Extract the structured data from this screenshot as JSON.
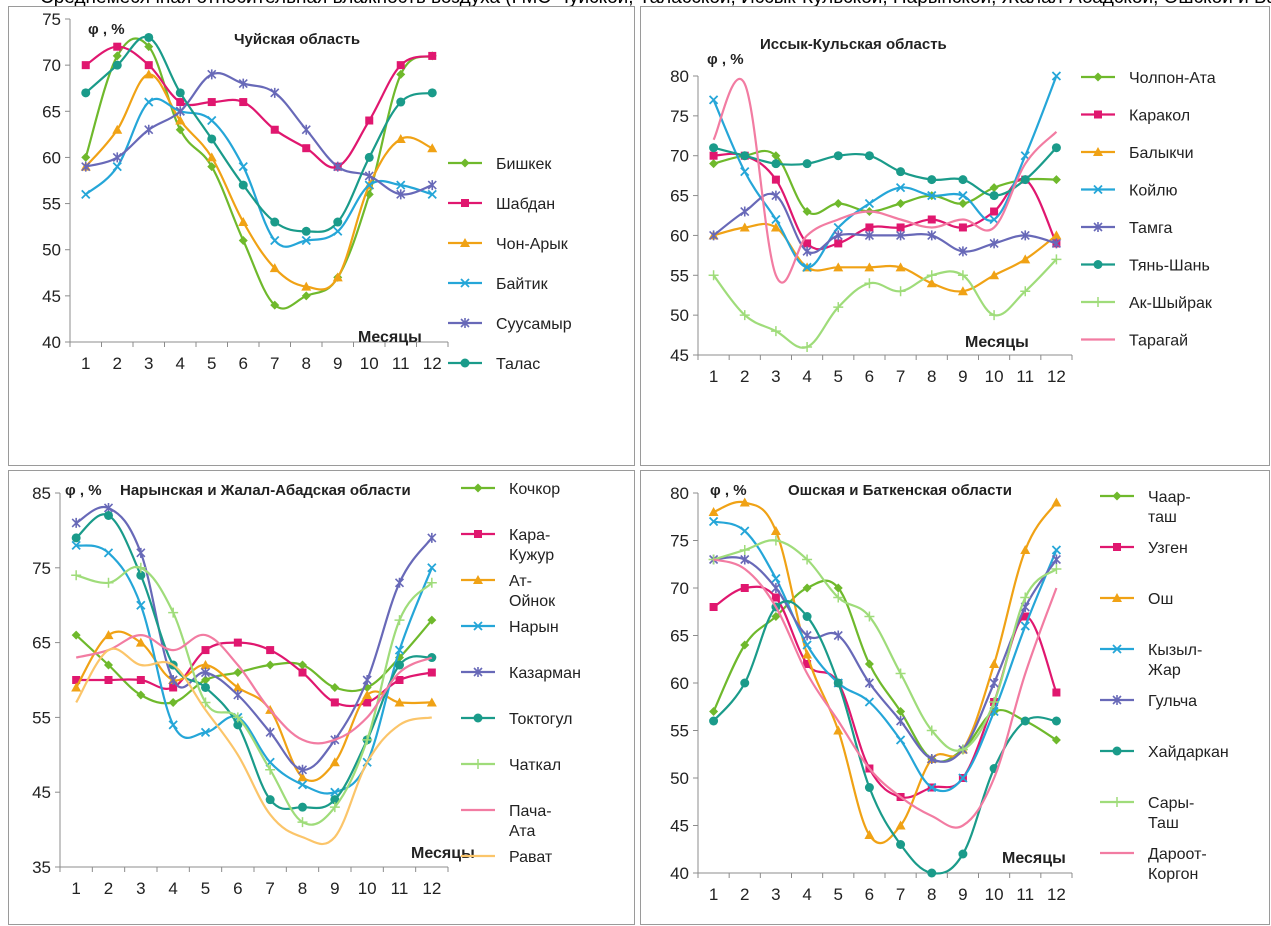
{
  "header_fragment": "Среднемесячная относительная влажность воздуха (ГМС Чуйской, Таласской, Иссык-Кульской, Нарынской, Жалал-Абадской, Ошской и Баткенской областей)",
  "chart_data": [
    {
      "type": "line",
      "title": "Чуйская область",
      "ylabel": "φ , %",
      "xlabel": "Месяцы",
      "categories": [
        "1",
        "2",
        "3",
        "4",
        "5",
        "6",
        "7",
        "8",
        "9",
        "10",
        "11",
        "12"
      ],
      "ylim": [
        40,
        75
      ],
      "yticks": [
        40,
        45,
        50,
        55,
        60,
        65,
        70,
        75
      ],
      "grid": false,
      "legend": "right",
      "series": [
        {
          "name": "Бишкек",
          "color": "#6fb92c",
          "marker": "diamond",
          "values": [
            60,
            71,
            72,
            63,
            59,
            51,
            44,
            45,
            47,
            56,
            69,
            71
          ]
        },
        {
          "name": "Шабдан",
          "color": "#e0176f",
          "marker": "square",
          "values": [
            70,
            72,
            70,
            66,
            66,
            66,
            63,
            61,
            59,
            64,
            70,
            71
          ]
        },
        {
          "name": "Чон-Арык",
          "color": "#f0a215",
          "marker": "triangle",
          "values": [
            59,
            63,
            69,
            64,
            60,
            53,
            48,
            46,
            47,
            57,
            62,
            61
          ]
        },
        {
          "name": "Байтик",
          "color": "#25a6d8",
          "marker": "x",
          "values": [
            56,
            59,
            66,
            65,
            64,
            59,
            51,
            51,
            52,
            57,
            57,
            56
          ]
        },
        {
          "name": "Суусамыр",
          "color": "#6869b8",
          "marker": "star",
          "values": [
            59,
            60,
            63,
            65,
            69,
            68,
            67,
            63,
            59,
            58,
            56,
            57
          ]
        },
        {
          "name": "Талас",
          "color": "#1a9b8a",
          "marker": "circle",
          "values": [
            67,
            70,
            73,
            67,
            62,
            57,
            53,
            52,
            53,
            60,
            66,
            67
          ]
        }
      ]
    },
    {
      "type": "line",
      "title": "Иссык-Кульская область",
      "ylabel": "φ , %",
      "xlabel": "Месяцы",
      "categories": [
        "1",
        "2",
        "3",
        "4",
        "5",
        "6",
        "7",
        "8",
        "9",
        "10",
        "11",
        "12"
      ],
      "ylim": [
        45,
        80
      ],
      "yticks": [
        45,
        50,
        55,
        60,
        65,
        70,
        75,
        80
      ],
      "grid": false,
      "legend": "right",
      "series": [
        {
          "name": "Чолпон-Ата",
          "color": "#6fb92c",
          "marker": "diamond",
          "values": [
            69,
            70,
            70,
            63,
            64,
            63,
            64,
            65,
            64,
            66,
            67,
            67
          ]
        },
        {
          "name": "Каракол",
          "color": "#e0176f",
          "marker": "square",
          "values": [
            70,
            70,
            67,
            59,
            59,
            61,
            61,
            62,
            61,
            63,
            67,
            59
          ]
        },
        {
          "name": "Балыкчи",
          "color": "#f0a215",
          "marker": "triangle",
          "values": [
            60,
            61,
            61,
            56,
            56,
            56,
            56,
            54,
            53,
            55,
            57,
            60
          ]
        },
        {
          "name": "Койлю",
          "color": "#25a6d8",
          "marker": "x",
          "values": [
            77,
            68,
            62,
            56,
            61,
            64,
            66,
            65,
            65,
            62,
            70,
            80
          ]
        },
        {
          "name": "Тамга",
          "color": "#6869b8",
          "marker": "star",
          "values": [
            60,
            63,
            65,
            58,
            60,
            60,
            60,
            60,
            58,
            59,
            60,
            59
          ]
        },
        {
          "name": "Тянь-Шань",
          "color": "#1a9b8a",
          "marker": "circle",
          "values": [
            71,
            70,
            69,
            69,
            70,
            70,
            68,
            67,
            67,
            65,
            67,
            71
          ]
        },
        {
          "name": "Ак-Шыйрак",
          "color": "#9fdc7a",
          "marker": "plus",
          "values": [
            55,
            50,
            48,
            46,
            51,
            54,
            53,
            55,
            55,
            50,
            53,
            57
          ]
        },
        {
          "name": "Тарагай",
          "color": "#f27ca2",
          "marker": "none",
          "values": [
            72,
            79,
            55,
            60,
            62,
            63,
            62,
            61,
            62,
            61,
            69,
            73
          ]
        }
      ]
    },
    {
      "type": "line",
      "title": "Нарынская и Жалал-Абадская области",
      "ylabel": "φ , %",
      "xlabel": "Месяцы",
      "categories": [
        "1",
        "2",
        "3",
        "4",
        "5",
        "6",
        "7",
        "8",
        "9",
        "10",
        "11",
        "12"
      ],
      "ylim": [
        35,
        85
      ],
      "yticks": [
        35,
        45,
        55,
        65,
        75,
        85
      ],
      "grid": false,
      "legend": "right",
      "series": [
        {
          "name": "Кочкор",
          "color": "#6fb92c",
          "marker": "diamond",
          "values": [
            66,
            62,
            58,
            57,
            60,
            61,
            62,
            62,
            59,
            59,
            63,
            68
          ]
        },
        {
          "name": "Кара-Кужур",
          "color": "#e0176f",
          "marker": "square",
          "values": [
            60,
            60,
            60,
            59,
            64,
            65,
            64,
            61,
            57,
            57,
            60,
            61
          ]
        },
        {
          "name": "Ат-Ойнок",
          "color": "#f0a215",
          "marker": "triangle",
          "values": [
            59,
            66,
            65,
            60,
            62,
            59,
            56,
            47,
            49,
            58,
            57,
            57
          ]
        },
        {
          "name": "Нарын",
          "color": "#25a6d8",
          "marker": "x",
          "values": [
            78,
            77,
            70,
            54,
            53,
            55,
            49,
            46,
            45,
            49,
            64,
            75
          ]
        },
        {
          "name": "Казарман",
          "color": "#6869b8",
          "marker": "star",
          "values": [
            81,
            83,
            77,
            60,
            61,
            58,
            53,
            48,
            52,
            60,
            73,
            79
          ]
        },
        {
          "name": "Токтогул",
          "color": "#1a9b8a",
          "marker": "circle",
          "values": [
            79,
            82,
            74,
            62,
            59,
            54,
            44,
            43,
            44,
            52,
            62,
            63
          ]
        },
        {
          "name": "Чаткал",
          "color": "#9fdc7a",
          "marker": "plus",
          "values": [
            74,
            73,
            75,
            69,
            57,
            55,
            48,
            41,
            43,
            52,
            68,
            73
          ]
        },
        {
          "name": "Пача-Ата",
          "color": "#f27ca2",
          "marker": "none",
          "values": [
            63,
            64,
            66,
            64,
            66,
            62,
            56,
            52,
            52,
            55,
            61,
            63
          ]
        },
        {
          "name": "Рават",
          "color": "#fbc56a",
          "marker": "none",
          "values": [
            57,
            64,
            62,
            62,
            56,
            50,
            42,
            39,
            39,
            49,
            54,
            55
          ]
        }
      ]
    },
    {
      "type": "line",
      "title": "Ошская и Баткенская области",
      "ylabel": "φ , %",
      "xlabel": "Месяцы",
      "categories": [
        "1",
        "2",
        "3",
        "4",
        "5",
        "6",
        "7",
        "8",
        "9",
        "10",
        "11",
        "12"
      ],
      "ylim": [
        40,
        80
      ],
      "yticks": [
        40,
        45,
        50,
        55,
        60,
        65,
        70,
        75,
        80
      ],
      "grid": false,
      "legend": "right",
      "series": [
        {
          "name": "Чаар-таш",
          "color": "#6fb92c",
          "marker": "diamond",
          "values": [
            57,
            64,
            67,
            70,
            70,
            62,
            57,
            52,
            53,
            57,
            56,
            54
          ]
        },
        {
          "name": "Узген",
          "color": "#e0176f",
          "marker": "square",
          "values": [
            68,
            70,
            69,
            62,
            60,
            51,
            48,
            49,
            50,
            58,
            67,
            59
          ]
        },
        {
          "name": "Ош",
          "color": "#f0a215",
          "marker": "triangle",
          "values": [
            78,
            79,
            76,
            63,
            55,
            44,
            45,
            52,
            53,
            62,
            74,
            79
          ]
        },
        {
          "name": "Кызыл-Жар",
          "color": "#25a6d8",
          "marker": "x",
          "values": [
            77,
            76,
            71,
            64,
            60,
            58,
            54,
            49,
            50,
            57,
            66,
            74
          ]
        },
        {
          "name": "Гульча",
          "color": "#6869b8",
          "marker": "star",
          "values": [
            73,
            73,
            70,
            65,
            65,
            60,
            56,
            52,
            53,
            60,
            68,
            73
          ]
        },
        {
          "name": "Хайдаркан",
          "color": "#1a9b8a",
          "marker": "circle",
          "values": [
            56,
            60,
            68,
            67,
            60,
            49,
            43,
            40,
            42,
            51,
            56,
            56
          ]
        },
        {
          "name": "Сары-Таш",
          "color": "#9fdc7a",
          "marker": "plus",
          "values": [
            73,
            74,
            75,
            73,
            69,
            67,
            61,
            55,
            53,
            58,
            69,
            72
          ]
        },
        {
          "name": "Дароот-Коргон",
          "color": "#f27ca2",
          "marker": "none",
          "values": [
            73,
            72,
            68,
            61,
            56,
            51,
            48,
            46,
            45,
            50,
            61,
            70
          ]
        }
      ]
    }
  ]
}
